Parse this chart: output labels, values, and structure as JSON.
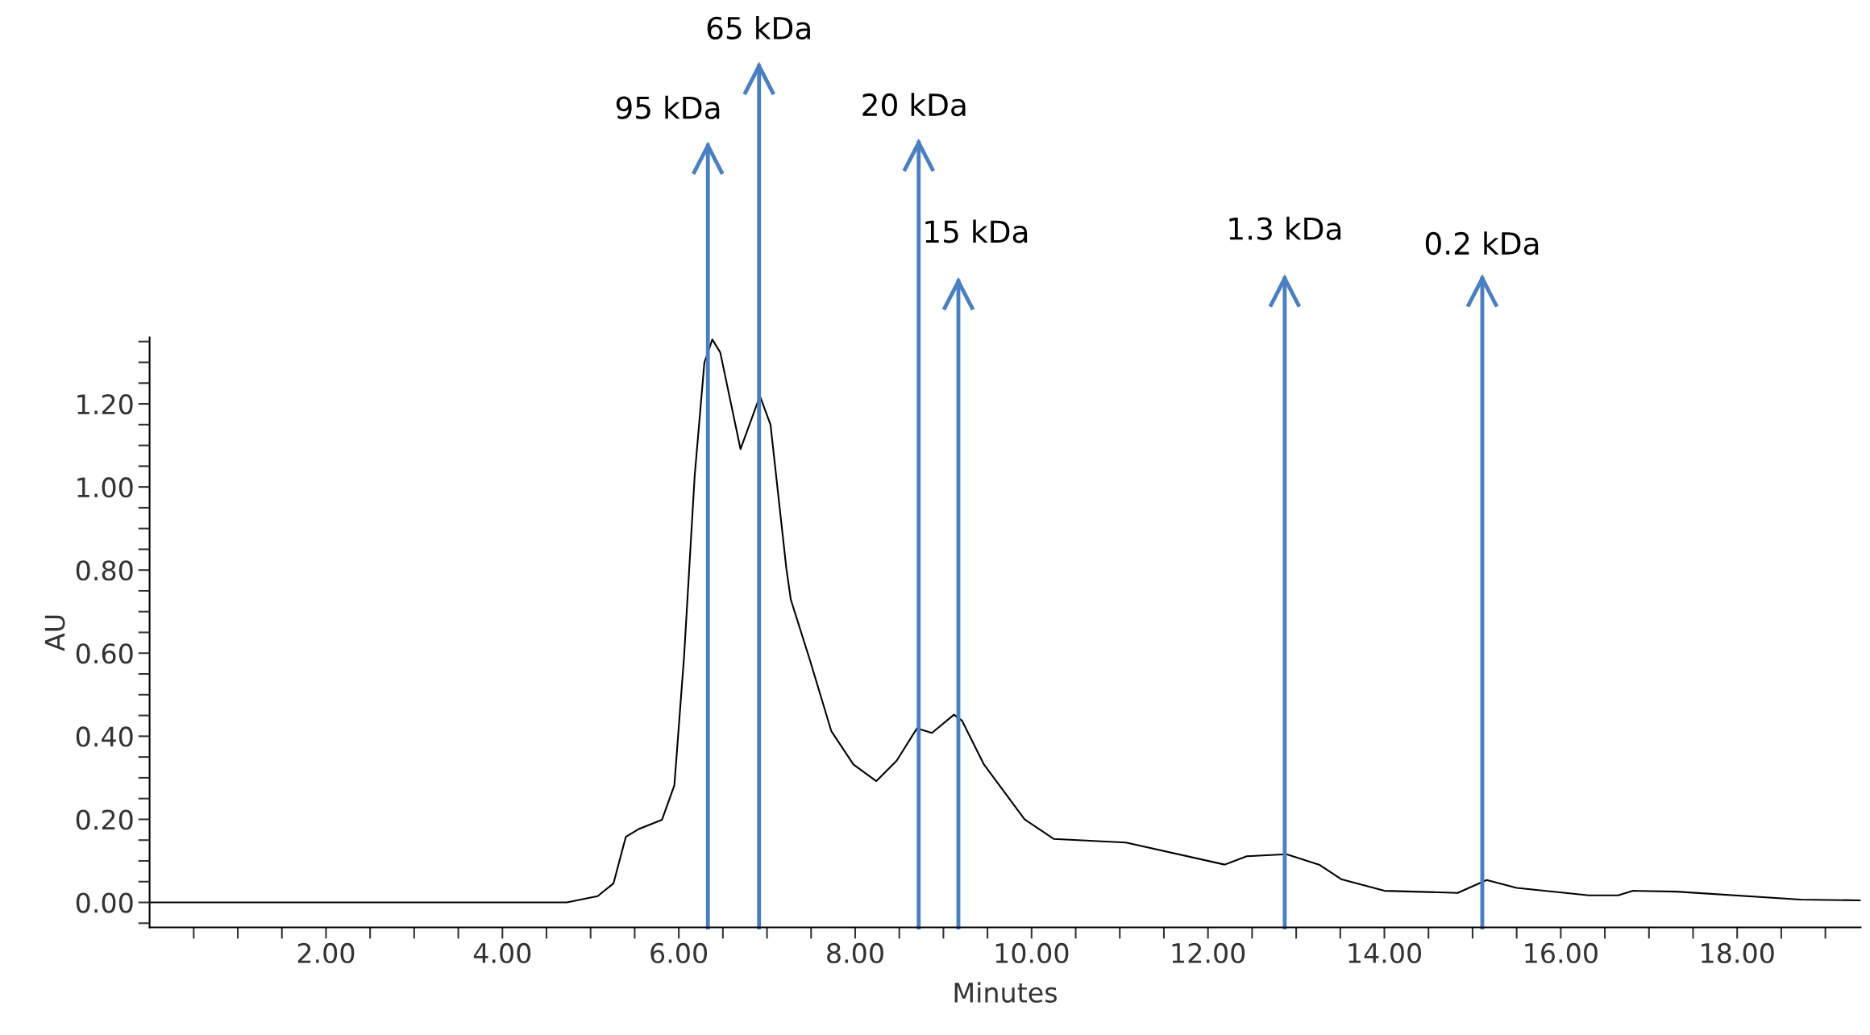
{
  "chart_data": {
    "type": "line",
    "xlabel": "Minutes",
    "ylabel": "AU",
    "xlim": [
      0,
      19.4
    ],
    "ylim": [
      -0.06,
      1.36
    ],
    "xticks": [
      {
        "value": 0.5,
        "label": null
      },
      {
        "value": 1,
        "label": null
      },
      {
        "value": 1.5,
        "label": null
      },
      {
        "value": 2,
        "label": "2.00"
      },
      {
        "value": 2.5,
        "label": null
      },
      {
        "value": 3,
        "label": null
      },
      {
        "value": 3.5,
        "label": null
      },
      {
        "value": 4,
        "label": "4.00"
      },
      {
        "value": 4.5,
        "label": null
      },
      {
        "value": 5,
        "label": null
      },
      {
        "value": 5.5,
        "label": null
      },
      {
        "value": 6,
        "label": "6.00"
      },
      {
        "value": 6.5,
        "label": null
      },
      {
        "value": 7,
        "label": null
      },
      {
        "value": 7.5,
        "label": null
      },
      {
        "value": 8,
        "label": "8.00"
      },
      {
        "value": 8.5,
        "label": null
      },
      {
        "value": 9,
        "label": null
      },
      {
        "value": 9.5,
        "label": null
      },
      {
        "value": 10,
        "label": "10.00"
      },
      {
        "value": 10.5,
        "label": null
      },
      {
        "value": 11,
        "label": null
      },
      {
        "value": 11.5,
        "label": null
      },
      {
        "value": 12,
        "label": "12.00"
      },
      {
        "value": 12.5,
        "label": null
      },
      {
        "value": 13,
        "label": null
      },
      {
        "value": 13.5,
        "label": null
      },
      {
        "value": 14,
        "label": "14.00"
      },
      {
        "value": 14.5,
        "label": null
      },
      {
        "value": 15,
        "label": null
      },
      {
        "value": 15.5,
        "label": null
      },
      {
        "value": 16,
        "label": "16.00"
      },
      {
        "value": 16.5,
        "label": null
      },
      {
        "value": 17,
        "label": null
      },
      {
        "value": 17.5,
        "label": null
      },
      {
        "value": 18,
        "label": "18.00"
      },
      {
        "value": 18.5,
        "label": null
      },
      {
        "value": 19,
        "label": null
      }
    ],
    "yticks": [
      {
        "value": -0.05,
        "label": null
      },
      {
        "value": 0,
        "label": "0.00"
      },
      {
        "value": 0.05,
        "label": null
      },
      {
        "value": 0.1,
        "label": null
      },
      {
        "value": 0.15,
        "label": null
      },
      {
        "value": 0.2,
        "label": "0.20"
      },
      {
        "value": 0.25,
        "label": null
      },
      {
        "value": 0.3,
        "label": null
      },
      {
        "value": 0.35,
        "label": null
      },
      {
        "value": 0.4,
        "label": "0.40"
      },
      {
        "value": 0.45,
        "label": null
      },
      {
        "value": 0.5,
        "label": null
      },
      {
        "value": 0.55,
        "label": null
      },
      {
        "value": 0.6,
        "label": "0.60"
      },
      {
        "value": 0.65,
        "label": null
      },
      {
        "value": 0.7,
        "label": null
      },
      {
        "value": 0.75,
        "label": null
      },
      {
        "value": 0.8,
        "label": "0.80"
      },
      {
        "value": 0.85,
        "label": null
      },
      {
        "value": 0.9,
        "label": null
      },
      {
        "value": 0.95,
        "label": null
      },
      {
        "value": 1.0,
        "label": "1.00"
      },
      {
        "value": 1.05,
        "label": null
      },
      {
        "value": 1.1,
        "label": null
      },
      {
        "value": 1.15,
        "label": null
      },
      {
        "value": 1.2,
        "label": "1.20"
      },
      {
        "value": 1.25,
        "label": null
      },
      {
        "value": 1.3,
        "label": null
      },
      {
        "value": 1.35,
        "label": null
      }
    ],
    "grid": false,
    "series": [
      {
        "color": "#000000",
        "x": [
          0,
          4.73,
          5.08,
          5.26,
          5.4,
          5.54,
          5.81,
          5.95,
          6.06,
          6.18,
          6.29,
          6.38,
          6.47,
          6.7,
          6.92,
          7.04,
          7.22,
          7.27,
          7.48,
          7.73,
          7.98,
          8.24,
          8.47,
          8.7,
          8.87,
          9.12,
          9.21,
          9.46,
          9.92,
          10.25,
          11.07,
          12.19,
          12.44,
          12.89,
          13.26,
          13.51,
          14.0,
          14.83,
          15.16,
          15.5,
          16.32,
          16.65,
          16.82,
          17.31,
          18.72,
          19.4
        ],
        "values": [
          0,
          0,
          0.015,
          0.046,
          0.158,
          0.176,
          0.199,
          0.282,
          0.592,
          1.026,
          1.299,
          1.355,
          1.324,
          1.091,
          1.219,
          1.15,
          0.803,
          0.729,
          0.588,
          0.412,
          0.332,
          0.292,
          0.341,
          0.419,
          0.408,
          0.452,
          0.438,
          0.332,
          0.2,
          0.153,
          0.144,
          0.091,
          0.111,
          0.116,
          0.091,
          0.056,
          0.028,
          0.023,
          0.054,
          0.035,
          0.017,
          0.017,
          0.028,
          0.026,
          0.007,
          0.005
        ]
      }
    ],
    "ref_lines": [
      {
        "axis": "x",
        "value": 6.33,
        "label": "95 kDa",
        "color": "#4a7fc1"
      },
      {
        "axis": "x",
        "value": 6.91,
        "label": "65 kDa",
        "color": "#4a7fc1"
      },
      {
        "axis": "x",
        "value": 8.72,
        "label": "20 kDa",
        "color": "#4a7fc1"
      },
      {
        "axis": "x",
        "value": 9.17,
        "label": "15 kDa",
        "color": "#4a7fc1"
      },
      {
        "axis": "x",
        "value": 12.87,
        "label": "1.3 kDa",
        "color": "#4a7fc1"
      },
      {
        "axis": "x",
        "value": 15.11,
        "label": "0.2 kDa",
        "color": "#4a7fc1"
      }
    ]
  }
}
